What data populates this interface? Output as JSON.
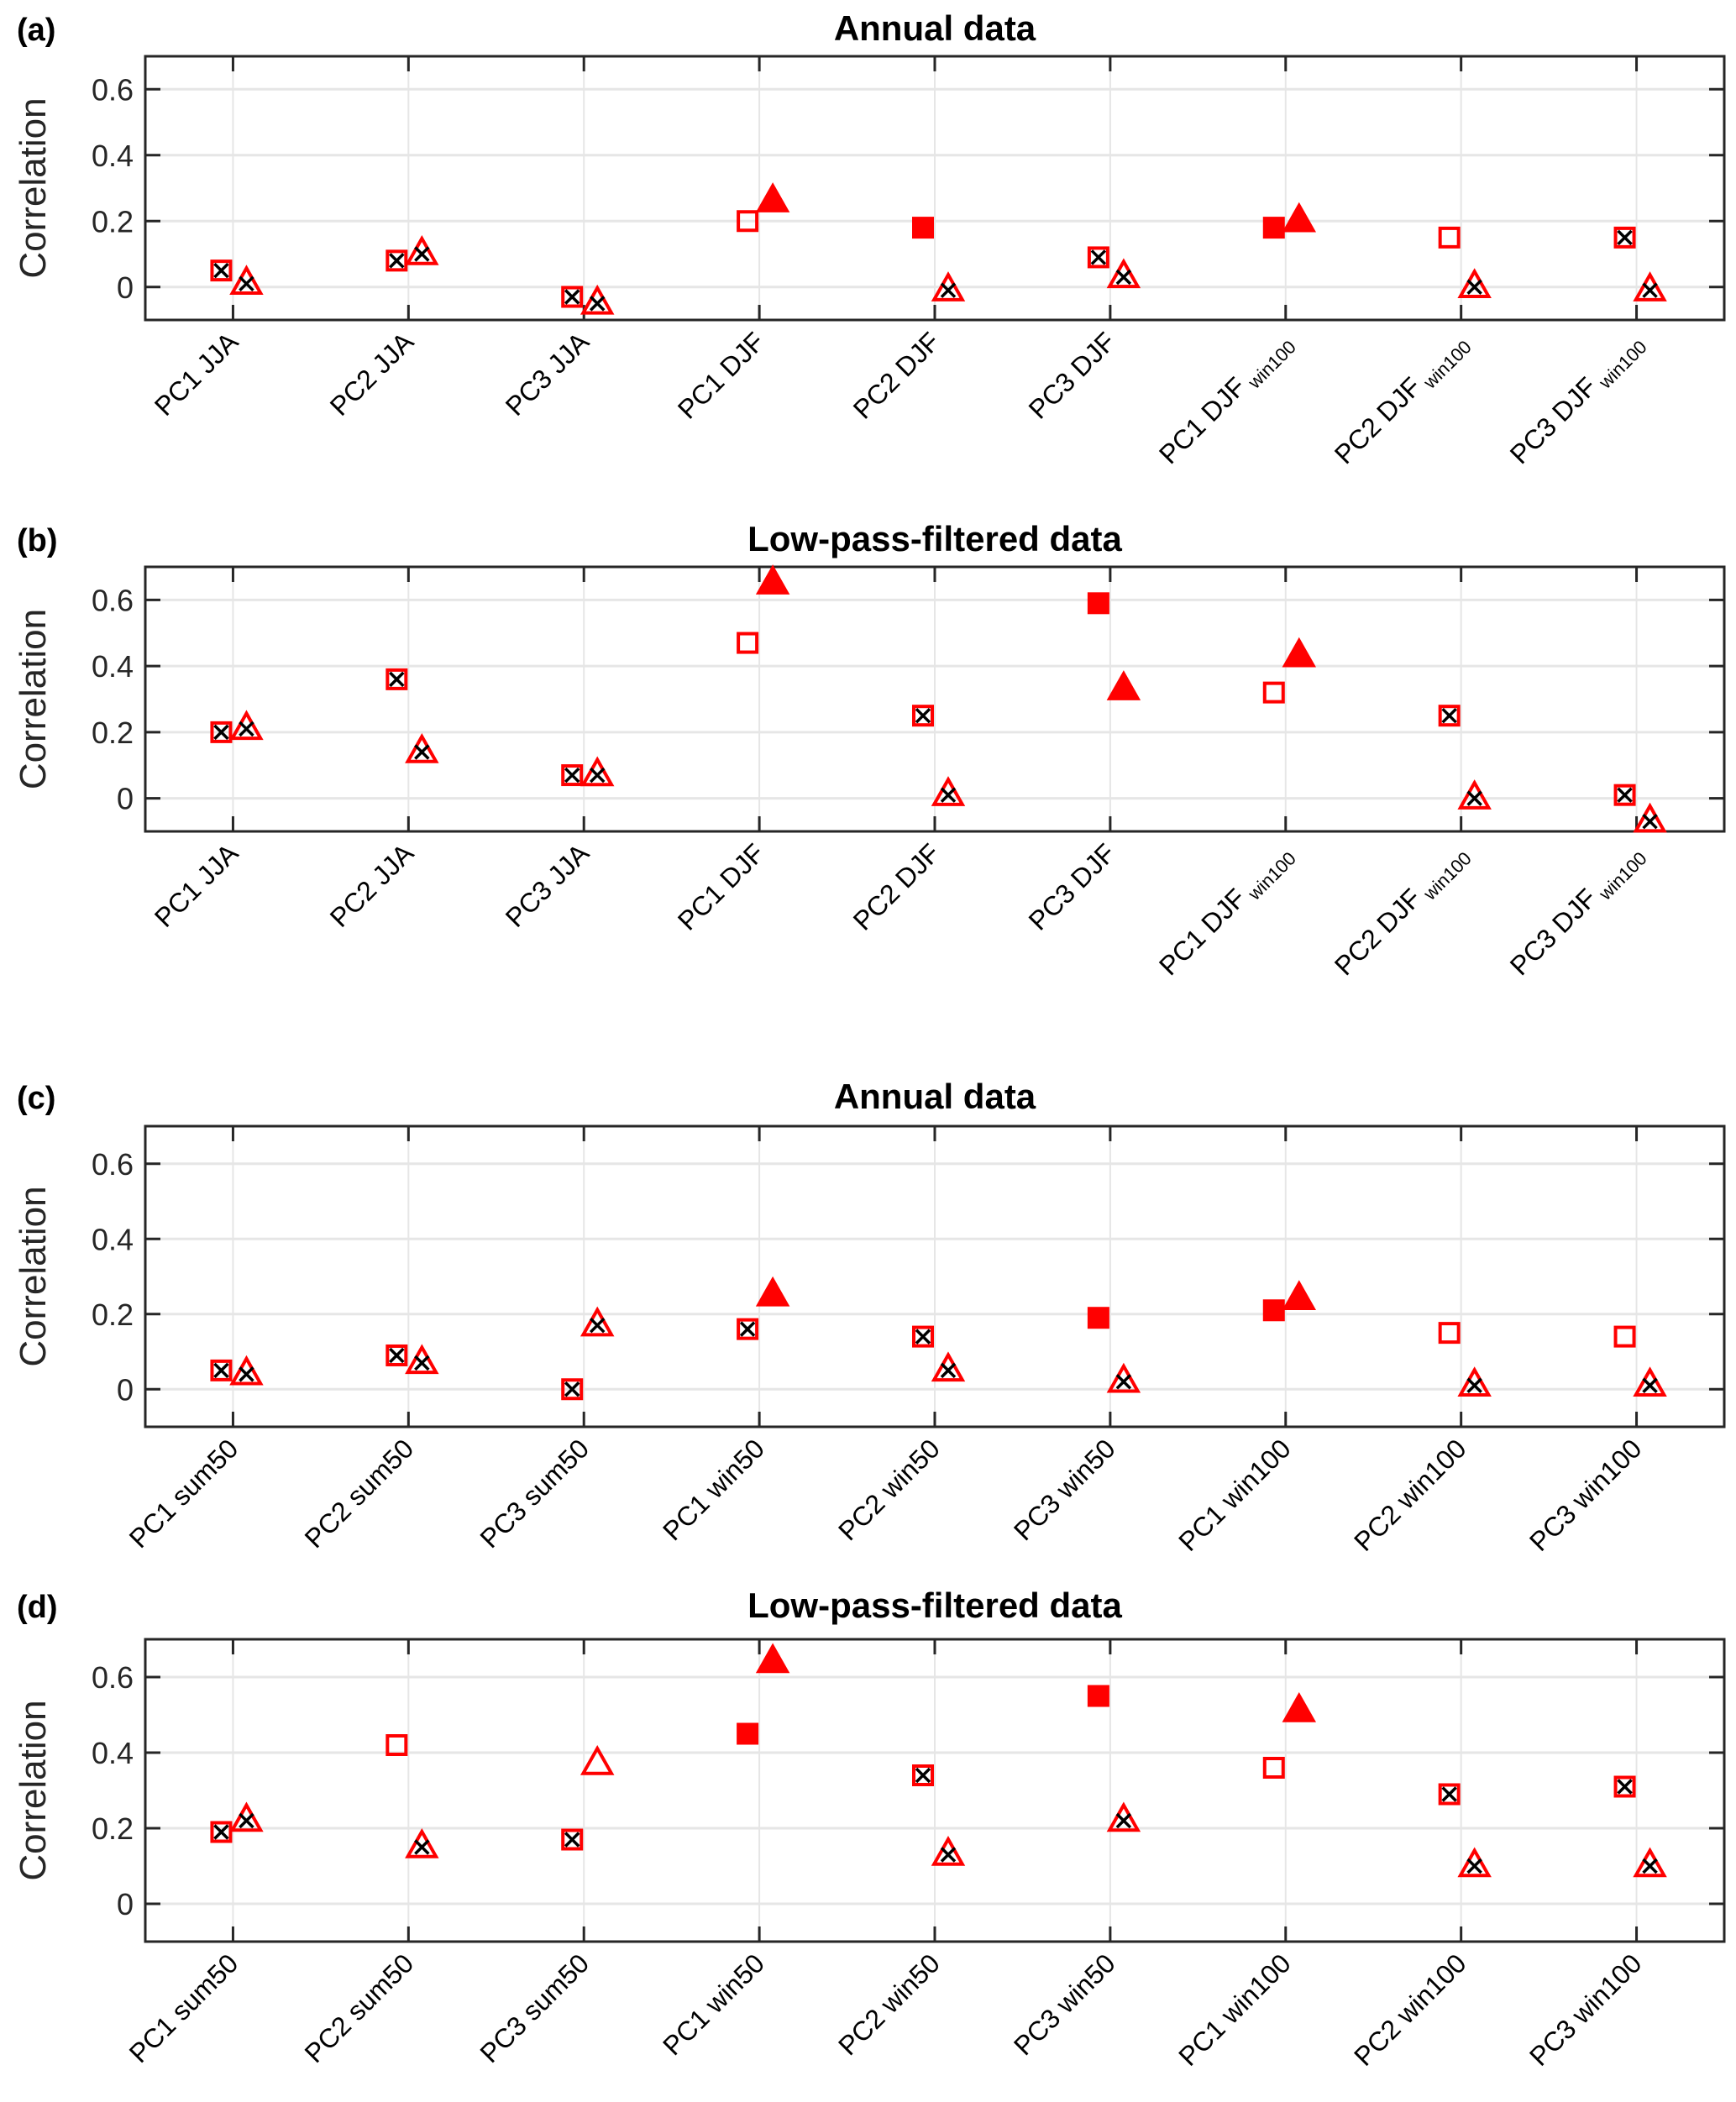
{
  "chart_data": [
    {
      "type": "scatter",
      "panel_label": "(a)",
      "title": "Annual data",
      "xlabel": "",
      "ylabel": "Correlation",
      "ylim": [
        -0.1,
        0.7
      ],
      "yticks": [
        0,
        0.2,
        0.4,
        0.6
      ],
      "ytick_labels": [
        "0",
        "0.2",
        "0.4",
        "0.6"
      ],
      "grid": true,
      "categories": [
        {
          "main": "PC1 JJA",
          "sub": ""
        },
        {
          "main": "PC2 JJA",
          "sub": ""
        },
        {
          "main": "PC3 JJA",
          "sub": ""
        },
        {
          "main": "PC1 DJF",
          "sub": ""
        },
        {
          "main": "PC2 DJF",
          "sub": ""
        },
        {
          "main": "PC3 DJF",
          "sub": ""
        },
        {
          "main": "PC1 DJF",
          "sub": "win100"
        },
        {
          "main": "PC2 DJF",
          "sub": "win100"
        },
        {
          "main": "PC3 DJF",
          "sub": "win100"
        }
      ],
      "series": [
        {
          "name": "square",
          "marker": "square",
          "values": [
            0.05,
            0.08,
            -0.03,
            0.2,
            0.18,
            0.09,
            0.18,
            0.15,
            0.15
          ],
          "style": [
            "crossed",
            "crossed",
            "crossed",
            "open",
            "filled",
            "crossed",
            "filled",
            "open",
            "crossed"
          ]
        },
        {
          "name": "triangle",
          "marker": "triangle",
          "values": [
            0.01,
            0.1,
            -0.05,
            0.26,
            -0.01,
            0.03,
            0.2,
            0.0,
            -0.01
          ],
          "style": [
            "crossed",
            "crossed",
            "crossed",
            "filled",
            "crossed",
            "crossed",
            "filled",
            "crossed",
            "crossed"
          ]
        }
      ]
    },
    {
      "type": "scatter",
      "panel_label": "(b)",
      "title": "Low-pass-filtered data",
      "xlabel": "",
      "ylabel": "Correlation",
      "ylim": [
        -0.1,
        0.7
      ],
      "yticks": [
        0,
        0.2,
        0.4,
        0.6
      ],
      "ytick_labels": [
        "0",
        "0.2",
        "0.4",
        "0.6"
      ],
      "grid": true,
      "categories": [
        {
          "main": "PC1 JJA",
          "sub": ""
        },
        {
          "main": "PC2 JJA",
          "sub": ""
        },
        {
          "main": "PC3 JJA",
          "sub": ""
        },
        {
          "main": "PC1 DJF",
          "sub": ""
        },
        {
          "main": "PC2 DJF",
          "sub": ""
        },
        {
          "main": "PC3 DJF",
          "sub": ""
        },
        {
          "main": "PC1 DJF",
          "sub": "win100"
        },
        {
          "main": "PC2 DJF",
          "sub": "win100"
        },
        {
          "main": "PC3 DJF",
          "sub": "win100"
        }
      ],
      "series": [
        {
          "name": "square",
          "marker": "square",
          "values": [
            0.2,
            0.36,
            0.07,
            0.47,
            0.25,
            0.59,
            0.32,
            0.25,
            0.01
          ],
          "style": [
            "crossed",
            "crossed",
            "crossed",
            "open",
            "crossed",
            "filled",
            "open",
            "crossed",
            "crossed"
          ]
        },
        {
          "name": "triangle",
          "marker": "triangle",
          "values": [
            0.21,
            0.14,
            0.07,
            0.65,
            0.01,
            0.33,
            0.43,
            0.0,
            -0.07
          ],
          "style": [
            "crossed",
            "crossed",
            "crossed",
            "filled",
            "crossed",
            "filled",
            "filled",
            "crossed",
            "crossed"
          ]
        }
      ]
    },
    {
      "type": "scatter",
      "panel_label": "(c)",
      "title": "Annual data",
      "xlabel": "",
      "ylabel": "Correlation",
      "ylim": [
        -0.1,
        0.7
      ],
      "yticks": [
        0,
        0.2,
        0.4,
        0.6
      ],
      "ytick_labels": [
        "0",
        "0.2",
        "0.4",
        "0.6"
      ],
      "grid": true,
      "categories": [
        {
          "main": "PC1 sum50",
          "sub": ""
        },
        {
          "main": "PC2 sum50",
          "sub": ""
        },
        {
          "main": "PC3 sum50",
          "sub": ""
        },
        {
          "main": "PC1 win50",
          "sub": ""
        },
        {
          "main": "PC2 win50",
          "sub": ""
        },
        {
          "main": "PC3 win50",
          "sub": ""
        },
        {
          "main": "PC1 win100",
          "sub": ""
        },
        {
          "main": "PC2 win100",
          "sub": ""
        },
        {
          "main": "PC3 win100",
          "sub": ""
        }
      ],
      "series": [
        {
          "name": "square",
          "marker": "square",
          "values": [
            0.05,
            0.09,
            0.0,
            0.16,
            0.14,
            0.19,
            0.21,
            0.15,
            0.14
          ],
          "style": [
            "crossed",
            "crossed",
            "crossed",
            "crossed",
            "crossed",
            "filled",
            "filled",
            "open",
            "open"
          ]
        },
        {
          "name": "triangle",
          "marker": "triangle",
          "values": [
            0.04,
            0.07,
            0.17,
            0.25,
            0.05,
            0.02,
            0.24,
            0.01,
            0.01
          ],
          "style": [
            "crossed",
            "crossed",
            "crossed",
            "filled",
            "crossed",
            "crossed",
            "filled",
            "crossed",
            "crossed"
          ]
        }
      ]
    },
    {
      "type": "scatter",
      "panel_label": "(d)",
      "title": "Low-pass-filtered data",
      "xlabel": "",
      "ylabel": "Correlation",
      "ylim": [
        -0.1,
        0.7
      ],
      "yticks": [
        0,
        0.2,
        0.4,
        0.6
      ],
      "ytick_labels": [
        "0",
        "0.2",
        "0.4",
        "0.6"
      ],
      "grid": true,
      "categories": [
        {
          "main": "PC1 sum50",
          "sub": ""
        },
        {
          "main": "PC2 sum50",
          "sub": ""
        },
        {
          "main": "PC3 sum50",
          "sub": ""
        },
        {
          "main": "PC1 win50",
          "sub": ""
        },
        {
          "main": "PC2 win50",
          "sub": ""
        },
        {
          "main": "PC3 win50",
          "sub": ""
        },
        {
          "main": "PC1 win100",
          "sub": ""
        },
        {
          "main": "PC2 win100",
          "sub": ""
        },
        {
          "main": "PC3 win100",
          "sub": ""
        }
      ],
      "series": [
        {
          "name": "square",
          "marker": "square",
          "values": [
            0.19,
            0.42,
            0.17,
            0.45,
            0.34,
            0.55,
            0.36,
            0.29,
            0.31
          ],
          "style": [
            "crossed",
            "open",
            "crossed",
            "filled",
            "crossed",
            "filled",
            "open",
            "crossed",
            "crossed"
          ]
        },
        {
          "name": "triangle",
          "marker": "triangle",
          "values": [
            0.22,
            0.15,
            0.37,
            0.64,
            0.13,
            0.22,
            0.51,
            0.1,
            0.1
          ],
          "style": [
            "crossed",
            "crossed",
            "open",
            "filled",
            "crossed",
            "crossed",
            "filled",
            "crossed",
            "crossed"
          ]
        }
      ]
    }
  ],
  "colors": {
    "marker": "#ff0000",
    "cross": "#000000",
    "axis": "#262626",
    "grid": "#e6e6e6"
  }
}
